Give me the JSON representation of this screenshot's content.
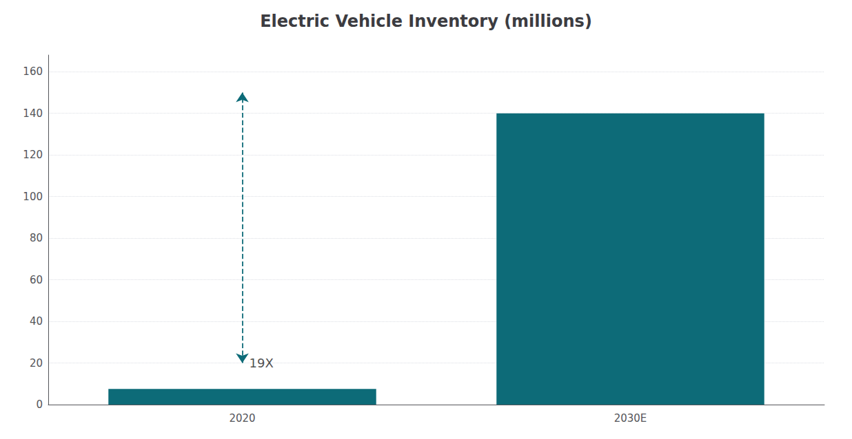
{
  "chart_data": {
    "type": "bar",
    "title": "Electric Vehicle Inventory (millions)",
    "categories": [
      "2020",
      "2030E"
    ],
    "values": [
      7.5,
      140
    ],
    "color": "#0d6b78",
    "ylim": [
      0,
      168
    ],
    "yticks": [
      0,
      20,
      40,
      60,
      80,
      100,
      120,
      140,
      160
    ],
    "grid": true,
    "annotations": [
      {
        "text": "19X",
        "x": "2020",
        "y_from": 20,
        "y_to": 150
      }
    ]
  }
}
